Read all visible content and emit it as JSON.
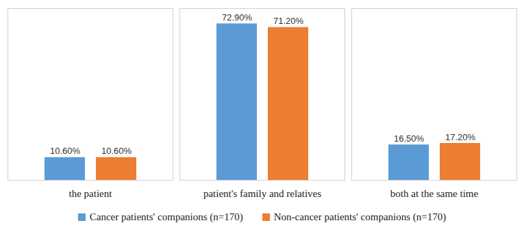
{
  "chart_data": {
    "type": "bar",
    "categories": [
      "the patient",
      "patient's family and relatives",
      "both at the same time"
    ],
    "series": [
      {
        "name": "Cancer patients' companions (n=170)",
        "color": "#5b9bd5",
        "values": [
          10.6,
          72.9,
          16.5
        ],
        "value_labels": [
          "10.60%",
          "72.90%",
          "16.50%"
        ]
      },
      {
        "name": "Non-cancer patients' companions (n=170)",
        "color": "#ed7d31",
        "values": [
          10.6,
          71.2,
          17.2
        ],
        "value_labels": [
          "10.60%",
          "71.20%",
          "17.20%"
        ]
      }
    ],
    "ylim": [
      0,
      80
    ],
    "grid": false,
    "legend": "bottom",
    "data_labels": true,
    "tick_labels": "x"
  }
}
